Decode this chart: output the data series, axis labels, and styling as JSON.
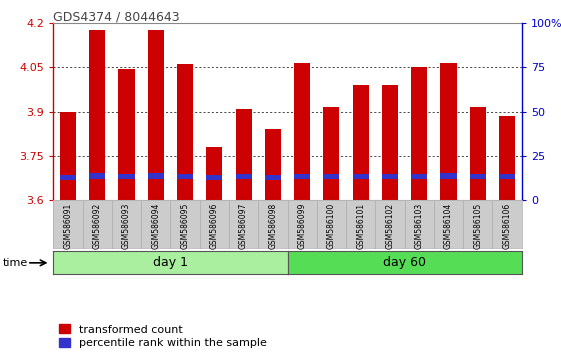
{
  "title": "GDS4374 / 8044643",
  "categories": [
    "GSM586091",
    "GSM586092",
    "GSM586093",
    "GSM586094",
    "GSM586095",
    "GSM586096",
    "GSM586097",
    "GSM586098",
    "GSM586099",
    "GSM586100",
    "GSM586101",
    "GSM586102",
    "GSM586103",
    "GSM586104",
    "GSM586105",
    "GSM586106"
  ],
  "red_values": [
    3.9,
    4.175,
    4.045,
    4.175,
    4.06,
    3.78,
    3.91,
    3.84,
    4.065,
    3.915,
    3.99,
    3.99,
    4.05,
    4.065,
    3.915,
    3.885
  ],
  "blue_top": [
    3.686,
    3.69,
    3.688,
    3.69,
    3.688,
    3.684,
    3.688,
    3.684,
    3.688,
    3.688,
    3.688,
    3.688,
    3.688,
    3.69,
    3.688,
    3.688
  ],
  "blue_bottom": [
    3.669,
    3.672,
    3.67,
    3.672,
    3.67,
    3.667,
    3.67,
    3.667,
    3.67,
    3.67,
    3.67,
    3.67,
    3.67,
    3.672,
    3.67,
    3.67
  ],
  "y_min": 3.6,
  "y_max": 4.2,
  "y_ticks": [
    3.6,
    3.75,
    3.9,
    4.05,
    4.2
  ],
  "y2_ticks": [
    0,
    25,
    50,
    75,
    100
  ],
  "y2_tick_labels": [
    "0",
    "25",
    "50",
    "75",
    "100%"
  ],
  "day1_label": "day 1",
  "day60_label": "day 60",
  "time_label": "time",
  "legend1": "transformed count",
  "legend2": "percentile rank within the sample",
  "red_color": "#cc0000",
  "blue_color": "#3333cc",
  "day1_bg": "#aaeea0",
  "day60_bg": "#55dd55",
  "title_color": "#444444",
  "left_axis_color": "#cc0000",
  "right_axis_color": "#0000cc",
  "bar_width": 0.55,
  "n_day1": 8,
  "n_day60": 8
}
